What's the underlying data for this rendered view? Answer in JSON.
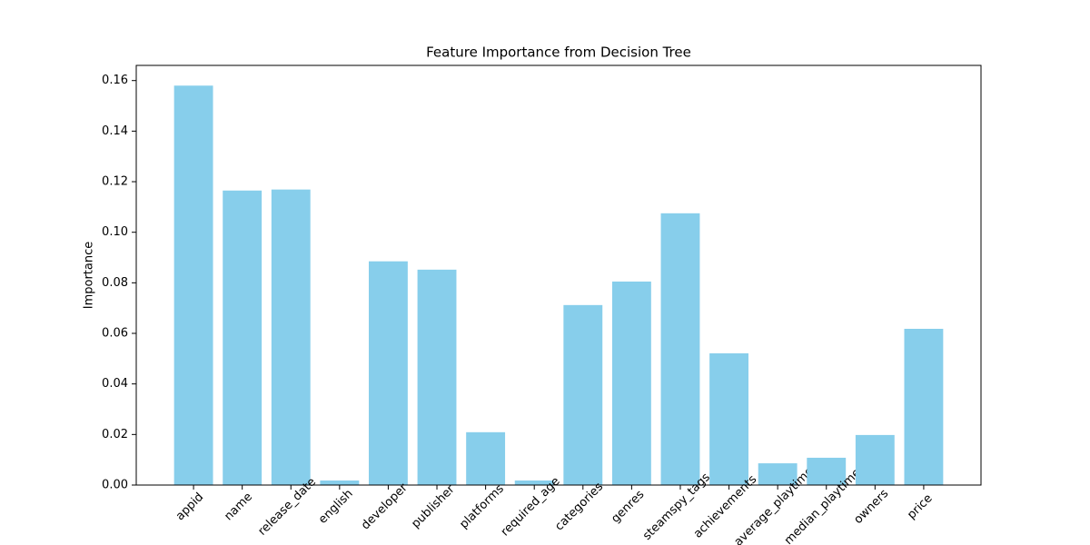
{
  "chart_data": {
    "type": "bar",
    "title": "Feature Importance from Decision Tree",
    "y_label": "Importance",
    "categories": [
      "appid",
      "name",
      "release_date",
      "english",
      "developer",
      "publisher",
      "platforms",
      "required_age",
      "categories",
      "genres",
      "steamspy_tags",
      "achievements",
      "average_playtime",
      "median_playtime",
      "owners",
      "price"
    ],
    "values": [
      0.158,
      0.1165,
      0.1169,
      0.0018,
      0.0885,
      0.0852,
      0.0209,
      0.0018,
      0.0712,
      0.0805,
      0.1075,
      0.0521,
      0.0086,
      0.0108,
      0.0198,
      0.0618
    ],
    "color": "#87ceeb",
    "ylim": [
      0,
      0.166
    ],
    "yticks": [
      {
        "value": 0,
        "label": "0.00"
      },
      0.02,
      0.04,
      0.06,
      0.08,
      {
        "value": 0.1,
        "label": "0.10"
      },
      0.12,
      0.14,
      0.16
    ],
    "grid": false
  }
}
